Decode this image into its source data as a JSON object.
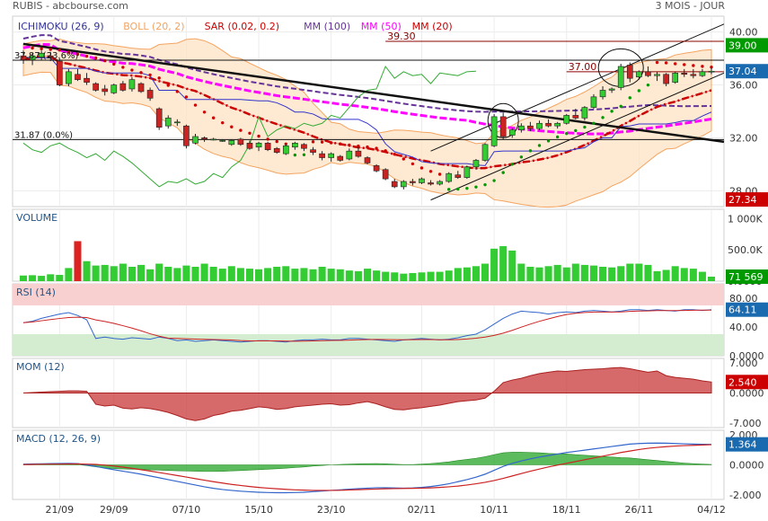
{
  "header": {
    "left": "RUBIS - abcbourse.com",
    "right": "3 MOIS - JOUR"
  },
  "colors": {
    "up": "#33cc33",
    "down": "#cc2222",
    "volume": "#33cc33",
    "volume_hi": "#dd2222",
    "rsi": "#3366cc",
    "rsi_sig": "#cc2222",
    "mom_fill": "#cc4444",
    "macd": "#3366cc",
    "macd_sig": "#cc2222",
    "macd_hist": "#33aa33",
    "boll": "#f4a460",
    "ma100": "#663399",
    "ma50": "#ff00ff",
    "ma20": "#cc0000",
    "sar": "#009900",
    "sar_down": "#cc0000",
    "kijun": "#3333cc",
    "chikou": "#33aa33"
  },
  "price_panel": {
    "legend": [
      {
        "text": "ICHIMOKU (26, 9)",
        "color": "#333399"
      },
      {
        "text": "BOLL (20, 2)",
        "color": "#f4a460"
      },
      {
        "text": "SAR (0.02, 0.2)",
        "color": "#cc0000"
      },
      {
        "text": "MM (100)",
        "color": "#663399"
      },
      {
        "text": "MM (50)",
        "color": "#ff00ff"
      },
      {
        "text": "MM (20)",
        "color": "#cc0000"
      }
    ],
    "y_ticks": [
      "40.00",
      "36.00",
      "32.00",
      "28.00"
    ],
    "fib_labels": {
      "f236": "37.87  (23.6%)",
      "f0": "31.87  (0.0%)"
    },
    "level_labels": {
      "a": "39.30",
      "b": "37.00"
    },
    "right_badges": [
      {
        "text": "39.00",
        "bg": "#009900"
      },
      {
        "text": "37.04",
        "bg": "#1a6ab0"
      },
      {
        "text": "27.34",
        "bg": "#cc0000"
      }
    ]
  },
  "volume_panel": {
    "title": "VOLUME",
    "y_ticks": [
      "1 000K",
      "500.0K",
      "0.0000"
    ],
    "badge": {
      "text": "71 569",
      "bg": "#009900"
    }
  },
  "rsi_panel": {
    "title": "RSI (14)",
    "y_ticks": [
      "80.00",
      "40.00",
      "0.0000"
    ],
    "badge": {
      "text": "64.11",
      "bg": "#1a6ab0"
    }
  },
  "mom_panel": {
    "title": "MOM (12)",
    "y_ticks": [
      "7.000",
      "0.0000",
      "-7.000"
    ],
    "badge": {
      "text": "2.540",
      "bg": "#cc0000"
    }
  },
  "macd_panel": {
    "title": "MACD (12, 26, 9)",
    "y_ticks": [
      "2.000",
      "0.0000",
      "-2.000"
    ],
    "badge": {
      "text": "1.364",
      "bg": "#1a6ab0"
    }
  },
  "x_axis": {
    "labels": [
      "21/09",
      "29/09",
      "07/10",
      "15/10",
      "23/10",
      "02/11",
      "10/11",
      "18/11",
      "26/11",
      "04/12"
    ]
  },
  "chart_data": {
    "type": "candlestick",
    "ylim": [
      26.8,
      41.2
    ],
    "dates": [
      "17/09",
      "18/09",
      "19/09",
      "20/09",
      "21/09",
      "24/09",
      "25/09",
      "26/09",
      "27/09",
      "28/09",
      "29/09",
      "30/09",
      "01/10",
      "02/10",
      "03/10",
      "04/10",
      "05/10",
      "06/10",
      "07/10",
      "08/10",
      "09/10",
      "10/10",
      "11/10",
      "12/10",
      "13/10",
      "14/10",
      "15/10",
      "16/10",
      "17/10",
      "18/10",
      "19/10",
      "20/10",
      "21/10",
      "22/10",
      "23/10",
      "24/10",
      "25/10",
      "26/10",
      "27/10",
      "28/10",
      "29/10",
      "30/10",
      "31/10",
      "01/11",
      "02/11",
      "03/11",
      "04/11",
      "05/11",
      "06/11",
      "07/11",
      "08/11",
      "09/11",
      "10/11",
      "11/11",
      "12/11",
      "13/11",
      "14/11",
      "15/11",
      "16/11",
      "17/11",
      "18/11",
      "19/11",
      "20/11",
      "21/11",
      "22/11",
      "23/11",
      "24/11",
      "25/11",
      "26/11",
      "27/11",
      "28/11",
      "29/11",
      "30/11",
      "01/12",
      "02/12",
      "03/12",
      "04/12"
    ],
    "ohlc": [
      [
        38.2,
        38.6,
        37.6,
        37.9
      ],
      [
        37.9,
        38.4,
        37.5,
        38.2
      ],
      [
        38.1,
        38.6,
        37.9,
        38.4
      ],
      [
        38.2,
        38.5,
        37.8,
        38.1
      ],
      [
        37.8,
        38.0,
        35.9,
        36.0
      ],
      [
        36.1,
        37.2,
        35.9,
        37.0
      ],
      [
        36.8,
        37.2,
        36.3,
        36.4
      ],
      [
        36.5,
        36.9,
        36.0,
        36.2
      ],
      [
        36.1,
        36.2,
        35.5,
        35.6
      ],
      [
        35.7,
        36.0,
        35.2,
        35.5
      ],
      [
        35.4,
        36.1,
        35.3,
        36.0
      ],
      [
        36.1,
        36.3,
        35.5,
        35.6
      ],
      [
        35.7,
        36.6,
        35.5,
        36.4
      ],
      [
        36.1,
        36.2,
        35.4,
        35.5
      ],
      [
        35.6,
        35.8,
        34.8,
        35.0
      ],
      [
        34.2,
        34.3,
        32.6,
        32.8
      ],
      [
        32.9,
        33.7,
        32.7,
        33.5
      ],
      [
        33.2,
        33.4,
        32.9,
        33.2
      ],
      [
        32.9,
        33.0,
        31.2,
        31.4
      ],
      [
        31.6,
        32.3,
        31.5,
        32.1
      ],
      [
        32.0,
        32.1,
        31.7,
        31.9
      ],
      [
        31.9,
        32.0,
        31.8,
        31.9
      ],
      [
        31.8,
        31.9,
        31.7,
        31.8
      ],
      [
        31.5,
        31.9,
        31.4,
        31.8
      ],
      [
        31.9,
        32.0,
        31.4,
        31.5
      ],
      [
        31.6,
        31.8,
        31.1,
        31.2
      ],
      [
        31.3,
        31.7,
        31.0,
        31.6
      ],
      [
        31.6,
        31.7,
        31.0,
        31.1
      ],
      [
        31.2,
        31.3,
        30.8,
        30.9
      ],
      [
        30.8,
        31.5,
        30.7,
        31.4
      ],
      [
        31.3,
        31.7,
        31.1,
        31.6
      ],
      [
        31.5,
        31.6,
        31.0,
        31.2
      ],
      [
        31.1,
        31.3,
        30.7,
        30.9
      ],
      [
        30.8,
        31.0,
        30.3,
        30.5
      ],
      [
        30.5,
        30.9,
        30.2,
        30.8
      ],
      [
        30.6,
        30.7,
        30.2,
        30.3
      ],
      [
        30.4,
        31.2,
        30.3,
        31.0
      ],
      [
        31.0,
        31.3,
        30.5,
        30.6
      ],
      [
        30.5,
        30.6,
        30.0,
        30.1
      ],
      [
        29.9,
        30.0,
        29.4,
        29.5
      ],
      [
        29.6,
        29.7,
        28.8,
        28.9
      ],
      [
        28.7,
        28.9,
        28.2,
        28.3
      ],
      [
        28.3,
        28.8,
        28.1,
        28.7
      ],
      [
        28.7,
        28.9,
        28.4,
        28.6
      ],
      [
        28.6,
        29.0,
        28.5,
        28.9
      ],
      [
        28.6,
        28.8,
        28.4,
        28.5
      ],
      [
        28.5,
        28.8,
        28.4,
        28.7
      ],
      [
        28.7,
        29.4,
        28.6,
        29.3
      ],
      [
        29.2,
        29.5,
        28.9,
        29.0
      ],
      [
        29.0,
        29.9,
        28.9,
        29.8
      ],
      [
        29.8,
        30.4,
        29.6,
        30.3
      ],
      [
        30.3,
        31.6,
        30.2,
        31.5
      ],
      [
        31.4,
        33.8,
        31.3,
        33.6
      ],
      [
        33.6,
        33.9,
        31.9,
        32.1
      ],
      [
        32.2,
        32.7,
        32.0,
        32.6
      ],
      [
        32.6,
        33.1,
        32.4,
        32.9
      ],
      [
        32.9,
        33.2,
        32.5,
        32.7
      ],
      [
        32.7,
        33.3,
        32.6,
        33.1
      ],
      [
        33.1,
        33.4,
        32.8,
        32.9
      ],
      [
        32.9,
        33.2,
        32.7,
        33.1
      ],
      [
        33.1,
        33.8,
        33.0,
        33.7
      ],
      [
        33.7,
        34.2,
        33.4,
        33.5
      ],
      [
        33.5,
        34.4,
        33.3,
        34.3
      ],
      [
        34.3,
        35.3,
        34.2,
        35.1
      ],
      [
        35.1,
        35.9,
        34.9,
        35.6
      ],
      [
        35.6,
        35.8,
        35.4,
        35.7
      ],
      [
        35.8,
        37.6,
        35.6,
        37.4
      ],
      [
        37.5,
        37.7,
        36.2,
        36.5
      ],
      [
        36.6,
        37.1,
        36.4,
        37.0
      ],
      [
        37.0,
        37.4,
        36.6,
        36.7
      ],
      [
        36.7,
        37.0,
        36.3,
        36.8
      ],
      [
        36.8,
        36.9,
        35.9,
        36.1
      ],
      [
        36.2,
        37.0,
        36.1,
        36.9
      ],
      [
        36.9,
        37.2,
        36.6,
        36.8
      ],
      [
        36.8,
        37.2,
        36.5,
        36.7
      ],
      [
        36.7,
        37.2,
        36.6,
        37.0
      ],
      [
        37.0,
        37.3,
        36.8,
        37.04
      ]
    ],
    "volume_k": [
      90,
      95,
      85,
      110,
      100,
      210,
      640,
      320,
      250,
      260,
      240,
      280,
      230,
      260,
      190,
      280,
      230,
      210,
      250,
      230,
      280,
      230,
      200,
      240,
      210,
      200,
      190,
      210,
      230,
      240,
      200,
      210,
      190,
      230,
      200,
      190,
      170,
      160,
      200,
      170,
      150,
      140,
      120,
      130,
      140,
      150,
      150,
      170,
      210,
      220,
      240,
      280,
      520,
      560,
      490,
      280,
      230,
      220,
      240,
      260,
      220,
      280,
      260,
      250,
      230,
      220,
      240,
      280,
      280,
      260,
      160,
      180,
      240,
      210,
      200,
      150,
      72
    ],
    "rsi": [
      46,
      48,
      52,
      55,
      58,
      60,
      56,
      50,
      24,
      26,
      24,
      23,
      25,
      24,
      23,
      26,
      24,
      21,
      22,
      20,
      21,
      22,
      21,
      20,
      19,
      20,
      21,
      21,
      20,
      19,
      21,
      22,
      22,
      23,
      22,
      22,
      24,
      24,
      23,
      22,
      21,
      20,
      22,
      23,
      24,
      23,
      22,
      23,
      25,
      28,
      30,
      36,
      44,
      52,
      58,
      62,
      61,
      60,
      58,
      60,
      61,
      60,
      62,
      63,
      62,
      61,
      62,
      64,
      64,
      63,
      64,
      63,
      62,
      64,
      64,
      63,
      64.11
    ],
    "mom": [
      0,
      0.1,
      0.2,
      0.3,
      0.4,
      0.5,
      0.5,
      0.4,
      -2.6,
      -3.0,
      -2.8,
      -3.5,
      -3.7,
      -3.4,
      -3.6,
      -4.0,
      -4.5,
      -5.2,
      -6.0,
      -6.4,
      -6.0,
      -5.2,
      -4.8,
      -4.2,
      -4.0,
      -3.6,
      -3.2,
      -3.4,
      -3.8,
      -3.6,
      -3.2,
      -3.0,
      -2.8,
      -2.6,
      -2.5,
      -2.8,
      -2.7,
      -2.3,
      -2.0,
      -2.5,
      -3.2,
      -3.8,
      -3.9,
      -3.6,
      -3.4,
      -3.1,
      -2.8,
      -2.4,
      -2.0,
      -1.8,
      -1.6,
      -1.2,
      0.4,
      2.4,
      3.0,
      3.4,
      4.0,
      4.5,
      4.8,
      5.1,
      5.0,
      5.2,
      5.4,
      5.5,
      5.6,
      5.8,
      5.9,
      5.6,
      5.2,
      4.8,
      5.1,
      4.0,
      3.6,
      3.4,
      3.2,
      2.8,
      2.54
    ],
    "macd": [
      0.05,
      0.06,
      0.07,
      0.08,
      0.09,
      0.1,
      0.08,
      0.0,
      -0.1,
      -0.22,
      -0.32,
      -0.42,
      -0.52,
      -0.62,
      -0.74,
      -0.86,
      -0.98,
      -1.1,
      -1.22,
      -1.34,
      -1.46,
      -1.56,
      -1.64,
      -1.7,
      -1.75,
      -1.79,
      -1.82,
      -1.84,
      -1.85,
      -1.85,
      -1.84,
      -1.82,
      -1.78,
      -1.74,
      -1.7,
      -1.66,
      -1.62,
      -1.58,
      -1.55,
      -1.52,
      -1.52,
      -1.54,
      -1.55,
      -1.54,
      -1.5,
      -1.44,
      -1.36,
      -1.26,
      -1.12,
      -0.98,
      -0.82,
      -0.62,
      -0.36,
      -0.1,
      0.1,
      0.26,
      0.4,
      0.52,
      0.62,
      0.72,
      0.82,
      0.9,
      0.98,
      1.06,
      1.14,
      1.22,
      1.3,
      1.38,
      1.42,
      1.44,
      1.45,
      1.44,
      1.42,
      1.4,
      1.38,
      1.37,
      1.364
    ],
    "macd_signal": [
      0.02,
      0.03,
      0.04,
      0.05,
      0.05,
      0.06,
      0.06,
      0.05,
      0.03,
      -0.02,
      -0.08,
      -0.15,
      -0.23,
      -0.32,
      -0.41,
      -0.51,
      -0.61,
      -0.71,
      -0.81,
      -0.92,
      -1.02,
      -1.12,
      -1.21,
      -1.3,
      -1.37,
      -1.44,
      -1.5,
      -1.55,
      -1.59,
      -1.63,
      -1.66,
      -1.68,
      -1.7,
      -1.7,
      -1.7,
      -1.69,
      -1.67,
      -1.65,
      -1.63,
      -1.61,
      -1.59,
      -1.58,
      -1.57,
      -1.56,
      -1.55,
      -1.53,
      -1.5,
      -1.46,
      -1.41,
      -1.34,
      -1.26,
      -1.16,
      -1.04,
      -0.9,
      -0.74,
      -0.58,
      -0.42,
      -0.28,
      -0.14,
      -0.02,
      0.1,
      0.22,
      0.34,
      0.46,
      0.58,
      0.7,
      0.82,
      0.92,
      1.02,
      1.1,
      1.16,
      1.21,
      1.25,
      1.28,
      1.3,
      1.32,
      1.34
    ]
  }
}
